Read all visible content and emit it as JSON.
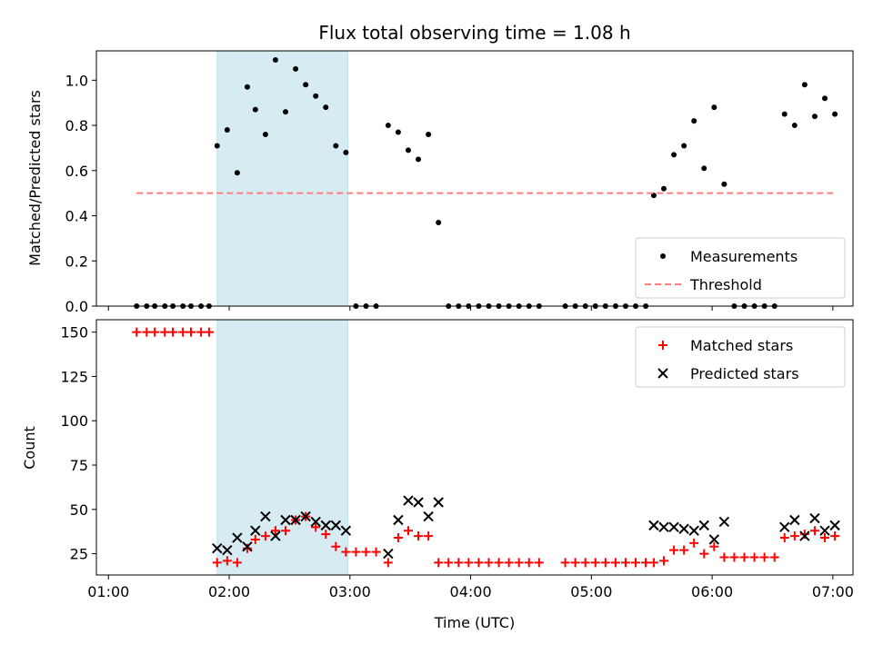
{
  "chart_data": [
    {
      "type": "scatter",
      "title": "Flux total observing time = 1.08 h",
      "xlabel": "",
      "ylabel": "Matched/Predicted stars",
      "xlim": [
        "01:00",
        "07:10"
      ],
      "ylim": [
        0,
        1.13
      ],
      "yticks": [
        "0.0",
        "0.2",
        "0.4",
        "0.6",
        "0.8",
        "1.0"
      ],
      "xticks": [
        "01:00",
        "02:00",
        "03:00",
        "04:00",
        "05:00",
        "06:00",
        "07:00"
      ],
      "xtick_labels_visible": false,
      "grid": false,
      "legend_placement": "lower-right",
      "highlight_band": {
        "start": "01:54",
        "end": "02:59",
        "color": "#add8e6"
      },
      "series": [
        {
          "name": "Measurements",
          "style": "dot",
          "color": "#000000",
          "points": [
            [
              "01:14",
              0.0
            ],
            [
              "01:19",
              0.0
            ],
            [
              "01:23",
              0.0
            ],
            [
              "01:28",
              0.0
            ],
            [
              "01:32",
              0.0
            ],
            [
              "01:37",
              0.0
            ],
            [
              "01:41",
              0.0
            ],
            [
              "01:46",
              0.0
            ],
            [
              "01:50",
              0.0
            ],
            [
              "01:54",
              0.71
            ],
            [
              "01:59",
              0.78
            ],
            [
              "02:04",
              0.59
            ],
            [
              "02:09",
              0.97
            ],
            [
              "02:13",
              0.87
            ],
            [
              "02:18",
              0.76
            ],
            [
              "02:23",
              1.09
            ],
            [
              "02:28",
              0.86
            ],
            [
              "02:33",
              1.05
            ],
            [
              "02:38",
              0.98
            ],
            [
              "02:43",
              0.93
            ],
            [
              "02:48",
              0.88
            ],
            [
              "02:53",
              0.71
            ],
            [
              "02:58",
              0.68
            ],
            [
              "03:03",
              0.0
            ],
            [
              "03:08",
              0.0
            ],
            [
              "03:13",
              0.0
            ],
            [
              "03:19",
              0.8
            ],
            [
              "03:24",
              0.77
            ],
            [
              "03:29",
              0.69
            ],
            [
              "03:34",
              0.65
            ],
            [
              "03:39",
              0.76
            ],
            [
              "03:44",
              0.37
            ],
            [
              "03:49",
              0.0
            ],
            [
              "03:54",
              0.0
            ],
            [
              "03:59",
              0.0
            ],
            [
              "04:04",
              0.0
            ],
            [
              "04:09",
              0.0
            ],
            [
              "04:14",
              0.0
            ],
            [
              "04:19",
              0.0
            ],
            [
              "04:24",
              0.0
            ],
            [
              "04:29",
              0.0
            ],
            [
              "04:34",
              0.0
            ],
            [
              "04:47",
              0.0
            ],
            [
              "04:52",
              0.0
            ],
            [
              "04:57",
              0.0
            ],
            [
              "05:02",
              0.0
            ],
            [
              "05:07",
              0.0
            ],
            [
              "05:12",
              0.0
            ],
            [
              "05:17",
              0.0
            ],
            [
              "05:22",
              0.0
            ],
            [
              "05:27",
              0.0
            ],
            [
              "05:31",
              0.49
            ],
            [
              "05:36",
              0.52
            ],
            [
              "05:41",
              0.67
            ],
            [
              "05:46",
              0.71
            ],
            [
              "05:51",
              0.82
            ],
            [
              "05:56",
              0.61
            ],
            [
              "06:01",
              0.88
            ],
            [
              "06:06",
              0.54
            ],
            [
              "06:11",
              0.0
            ],
            [
              "06:16",
              0.0
            ],
            [
              "06:21",
              0.0
            ],
            [
              "06:26",
              0.0
            ],
            [
              "06:31",
              0.0
            ],
            [
              "06:36",
              0.85
            ],
            [
              "06:41",
              0.8
            ],
            [
              "06:46",
              0.98
            ],
            [
              "06:51",
              0.84
            ],
            [
              "06:56",
              0.92
            ],
            [
              "07:01",
              0.85
            ]
          ]
        },
        {
          "name": "Threshold",
          "style": "dashed-line",
          "color": "#ff7f7f",
          "points": [
            [
              "01:14",
              0.5
            ],
            [
              "07:01",
              0.5
            ]
          ]
        }
      ]
    },
    {
      "type": "scatter",
      "title": "",
      "xlabel": "Time (UTC)",
      "ylabel": "Count",
      "xlim": [
        "01:00",
        "07:10"
      ],
      "ylim": [
        13,
        157
      ],
      "yticks": [
        "25",
        "50",
        "75",
        "100",
        "125",
        "150"
      ],
      "xticks": [
        "01:00",
        "02:00",
        "03:00",
        "04:00",
        "05:00",
        "06:00",
        "07:00"
      ],
      "grid": false,
      "legend_placement": "upper-right",
      "highlight_band": {
        "start": "01:54",
        "end": "02:59",
        "color": "#add8e6"
      },
      "series": [
        {
          "name": "Matched stars",
          "marker": "plus",
          "color": "#ff0000",
          "points": [
            [
              "01:14",
              150
            ],
            [
              "01:19",
              150
            ],
            [
              "01:23",
              150
            ],
            [
              "01:28",
              150
            ],
            [
              "01:32",
              150
            ],
            [
              "01:37",
              150
            ],
            [
              "01:41",
              150
            ],
            [
              "01:46",
              150
            ],
            [
              "01:50",
              150
            ],
            [
              "01:54",
              20
            ],
            [
              "01:59",
              21
            ],
            [
              "02:04",
              20
            ],
            [
              "02:09",
              28
            ],
            [
              "02:13",
              33
            ],
            [
              "02:18",
              35
            ],
            [
              "02:23",
              38
            ],
            [
              "02:28",
              38
            ],
            [
              "02:33",
              44
            ],
            [
              "02:38",
              46
            ],
            [
              "02:43",
              40
            ],
            [
              "02:48",
              36
            ],
            [
              "02:53",
              29
            ],
            [
              "02:58",
              26
            ],
            [
              "03:03",
              26
            ],
            [
              "03:08",
              26
            ],
            [
              "03:13",
              26
            ],
            [
              "03:19",
              20
            ],
            [
              "03:24",
              34
            ],
            [
              "03:29",
              38
            ],
            [
              "03:34",
              35
            ],
            [
              "03:39",
              35
            ],
            [
              "03:44",
              20
            ],
            [
              "03:49",
              20
            ],
            [
              "03:54",
              20
            ],
            [
              "03:59",
              20
            ],
            [
              "04:04",
              20
            ],
            [
              "04:09",
              20
            ],
            [
              "04:14",
              20
            ],
            [
              "04:19",
              20
            ],
            [
              "04:24",
              20
            ],
            [
              "04:29",
              20
            ],
            [
              "04:34",
              20
            ],
            [
              "04:47",
              20
            ],
            [
              "04:52",
              20
            ],
            [
              "04:57",
              20
            ],
            [
              "05:02",
              20
            ],
            [
              "05:07",
              20
            ],
            [
              "05:12",
              20
            ],
            [
              "05:17",
              20
            ],
            [
              "05:22",
              20
            ],
            [
              "05:27",
              20
            ],
            [
              "05:31",
              20
            ],
            [
              "05:36",
              21
            ],
            [
              "05:41",
              27
            ],
            [
              "05:46",
              27
            ],
            [
              "05:51",
              31
            ],
            [
              "05:56",
              25
            ],
            [
              "06:01",
              29
            ],
            [
              "06:06",
              23
            ],
            [
              "06:11",
              23
            ],
            [
              "06:16",
              23
            ],
            [
              "06:21",
              23
            ],
            [
              "06:26",
              23
            ],
            [
              "06:31",
              23
            ],
            [
              "06:36",
              34
            ],
            [
              "06:41",
              35
            ],
            [
              "06:46",
              36
            ],
            [
              "06:51",
              38
            ],
            [
              "06:56",
              34
            ],
            [
              "07:01",
              35
            ]
          ]
        },
        {
          "name": "Predicted stars",
          "marker": "x",
          "color": "#000000",
          "points": [
            [
              "01:54",
              28
            ],
            [
              "01:59",
              27
            ],
            [
              "02:04",
              34
            ],
            [
              "02:09",
              29
            ],
            [
              "02:13",
              38
            ],
            [
              "02:18",
              46
            ],
            [
              "02:23",
              35
            ],
            [
              "02:28",
              44
            ],
            [
              "02:33",
              44
            ],
            [
              "02:38",
              46
            ],
            [
              "02:43",
              43
            ],
            [
              "02:48",
              41
            ],
            [
              "02:53",
              41
            ],
            [
              "02:58",
              38
            ],
            [
              "03:19",
              25
            ],
            [
              "03:24",
              44
            ],
            [
              "03:29",
              55
            ],
            [
              "03:34",
              54
            ],
            [
              "03:39",
              46
            ],
            [
              "03:44",
              54
            ],
            [
              "05:31",
              41
            ],
            [
              "05:36",
              40
            ],
            [
              "05:41",
              40
            ],
            [
              "05:46",
              39
            ],
            [
              "05:51",
              38
            ],
            [
              "05:56",
              41
            ],
            [
              "06:01",
              33
            ],
            [
              "06:06",
              43
            ],
            [
              "06:36",
              40
            ],
            [
              "06:41",
              44
            ],
            [
              "06:46",
              35
            ],
            [
              "06:51",
              45
            ],
            [
              "06:56",
              38
            ],
            [
              "07:01",
              41
            ]
          ]
        }
      ]
    }
  ]
}
